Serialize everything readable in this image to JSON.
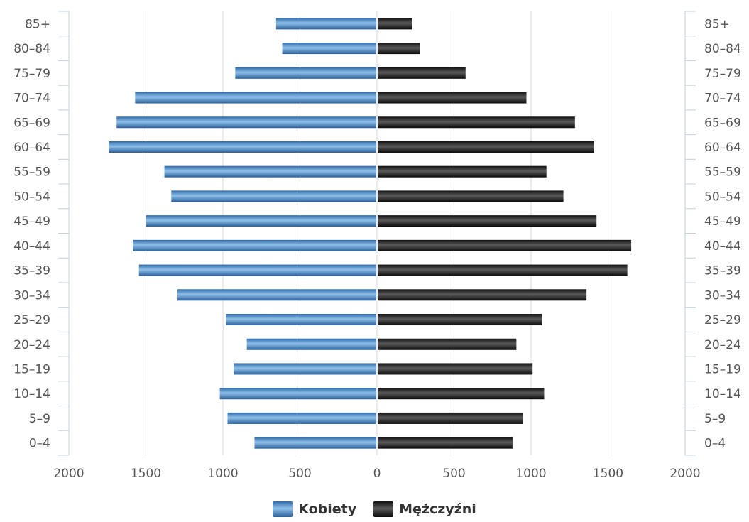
{
  "chart_data": {
    "type": "bar",
    "orientation": "horizontal",
    "subtype": "population-pyramid",
    "categories": [
      "0-4",
      "5-9",
      "10-14",
      "15-19",
      "20-24",
      "25-29",
      "30-34",
      "35-39",
      "40-44",
      "45-49",
      "50-54",
      "55-59",
      "60-64",
      "65-69",
      "70-74",
      "75-79",
      "80-84",
      "85+"
    ],
    "series": [
      {
        "name": "Kobiety",
        "color": "#4a86c1",
        "side": "left",
        "values": [
          795,
          970,
          1020,
          930,
          845,
          980,
          1295,
          1545,
          1585,
          1500,
          1335,
          1380,
          1740,
          1690,
          1570,
          920,
          615,
          655
        ]
      },
      {
        "name": "Mężczyźni",
        "color": "#1a1a1a",
        "side": "right",
        "values": [
          880,
          945,
          1085,
          1010,
          905,
          1070,
          1360,
          1625,
          1650,
          1425,
          1210,
          1100,
          1410,
          1285,
          970,
          575,
          280,
          230
        ]
      }
    ],
    "xlim": [
      -2000,
      2000
    ],
    "x_ticks": [
      "2000",
      "1500",
      "1000",
      "500",
      "0",
      "500",
      "1000",
      "1500",
      "2000"
    ],
    "grid": true,
    "legend_position": "bottom-center",
    "title": "",
    "xlabel": "",
    "ylabel": ""
  },
  "legend": {
    "items": [
      {
        "label": "Kobiety",
        "color": "#4a86c1"
      },
      {
        "label": "Mężczyźni",
        "color": "#1a1a1a"
      }
    ]
  }
}
